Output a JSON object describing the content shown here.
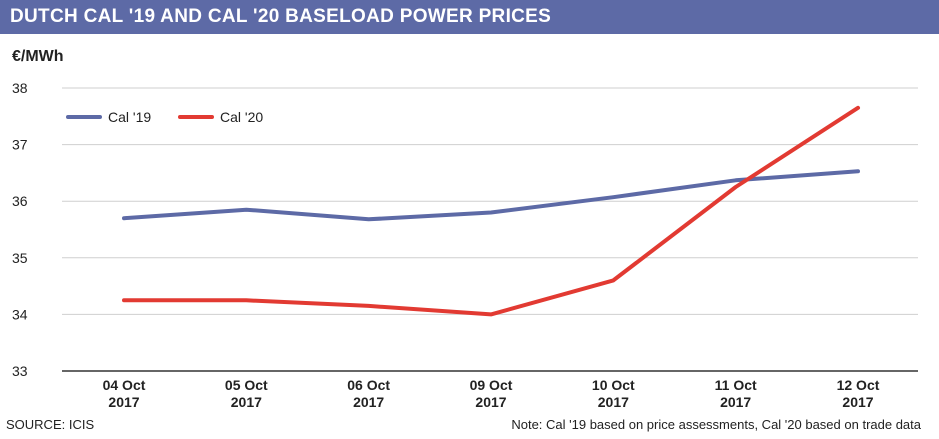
{
  "header": {
    "title": "DUTCH CAL '19 AND CAL '20 BASELOAD POWER PRICES"
  },
  "footer": {
    "source": "SOURCE: ICIS",
    "note": "Note: Cal '19 based on price assessments, Cal '20 based on trade data"
  },
  "colors": {
    "header_bg": "#5d6aa6",
    "cal19": "#5d6aa6",
    "cal20": "#e23a32",
    "grid": "#cfcfcf"
  },
  "chart_data": {
    "type": "line",
    "title": "DUTCH CAL '19 AND CAL '20 BASELOAD POWER PRICES",
    "ylabel": "€/MWh",
    "xlabel": "",
    "ylim": [
      33,
      38
    ],
    "yticks": [
      33,
      34,
      35,
      36,
      37,
      38
    ],
    "grid": true,
    "legend_position": "top-left",
    "categories": [
      [
        "04 Oct",
        "2017"
      ],
      [
        "05 Oct",
        "2017"
      ],
      [
        "06 Oct",
        "2017"
      ],
      [
        "09 Oct",
        "2017"
      ],
      [
        "10 Oct",
        "2017"
      ],
      [
        "11 Oct",
        "2017"
      ],
      [
        "12 Oct",
        "2017"
      ]
    ],
    "series": [
      {
        "name": "Cal '19",
        "color": "#5d6aa6",
        "values": [
          35.7,
          35.85,
          35.68,
          35.8,
          36.07,
          36.37,
          36.53
        ]
      },
      {
        "name": "Cal '20",
        "color": "#e23a32",
        "values": [
          34.25,
          34.25,
          34.15,
          34.0,
          34.6,
          36.25,
          37.65
        ]
      }
    ]
  }
}
